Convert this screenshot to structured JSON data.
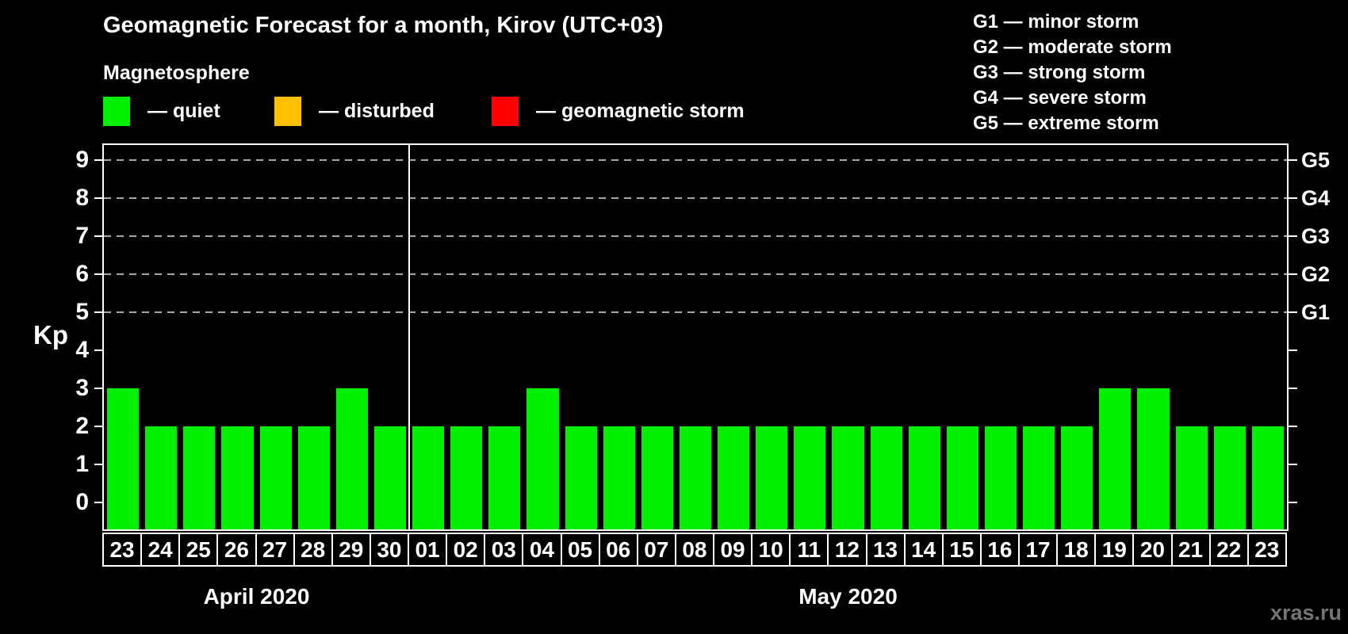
{
  "title": "Geomagnetic Forecast for a month, Kirov (UTC+03)",
  "subtitle": "Magnetosphere",
  "legend": {
    "items": [
      {
        "name": "quiet",
        "label": "— quiet",
        "color": "#00f000"
      },
      {
        "name": "disturbed",
        "label": "— disturbed",
        "color": "#ffc000"
      },
      {
        "name": "geomagnetic-storm",
        "label": "— geomagnetic storm",
        "color": "#ff0000"
      }
    ]
  },
  "g_legend": {
    "items": [
      "G1 — minor storm",
      "G2 — moderate storm",
      "G3 — strong storm",
      "G4 — severe storm",
      "G5 — extreme storm"
    ]
  },
  "watermark": "xras.ru",
  "chart_data": {
    "type": "bar",
    "title": "Geomagnetic Forecast for a month, Kirov (UTC+03)",
    "ylabel": "Kp",
    "ylim": [
      0,
      9
    ],
    "yticks": [
      "0",
      "1",
      "2",
      "3",
      "4",
      "5",
      "6",
      "7",
      "8",
      "9"
    ],
    "right_axis": {
      "labels": [
        "G1",
        "G2",
        "G3",
        "G4",
        "G5"
      ],
      "at_kp": [
        5,
        6,
        7,
        8,
        9
      ]
    },
    "gridlines_at_kp": [
      5,
      6,
      7,
      8,
      9
    ],
    "grid": "dashed-horizontal-upper-only",
    "bar_color": "#00f000",
    "status_colors": {
      "quiet": "#00f000",
      "disturbed": "#ffc000",
      "storm": "#ff0000"
    },
    "month_groups": [
      {
        "label": "April 2020",
        "start_index": 0,
        "count": 8
      },
      {
        "label": "May 2020",
        "start_index": 8,
        "count": 23
      }
    ],
    "categories": [
      "23",
      "24",
      "25",
      "26",
      "27",
      "28",
      "29",
      "30",
      "01",
      "02",
      "03",
      "04",
      "05",
      "06",
      "07",
      "08",
      "09",
      "10",
      "11",
      "12",
      "13",
      "14",
      "15",
      "16",
      "17",
      "18",
      "19",
      "20",
      "21",
      "22",
      "23"
    ],
    "values": [
      3,
      2,
      2,
      2,
      2,
      2,
      3,
      2,
      2,
      2,
      2,
      3,
      2,
      2,
      2,
      2,
      2,
      2,
      2,
      2,
      2,
      2,
      2,
      2,
      2,
      2,
      3,
      3,
      2,
      2,
      2
    ]
  }
}
